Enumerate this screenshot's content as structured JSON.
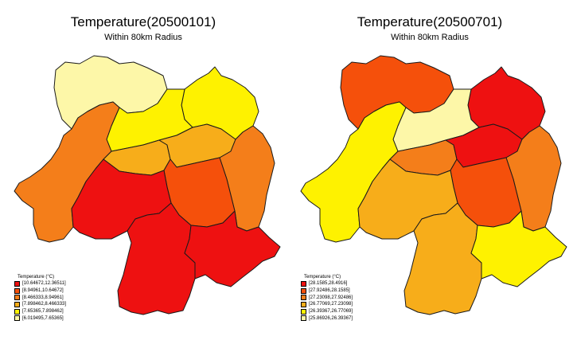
{
  "panels": [
    {
      "title": "Temperature(20500101)",
      "subtitle": "Within 80km Radius",
      "legend_title": "Temperature (°C)",
      "legend": [
        {
          "label": "[10.64672,12.36511]",
          "color": "#ee1111"
        },
        {
          "label": "[8.94961,10.64672]",
          "color": "#f5500b"
        },
        {
          "label": "[8.466333,8.94961]",
          "color": "#f47e1a"
        },
        {
          "label": "[7.898462,8.466333]",
          "color": "#f7ad1a"
        },
        {
          "label": "[7.65365,7.898462]",
          "color": "#fef200"
        },
        {
          "label": "[6.019495,7.65365]",
          "color": "#fdf7a8"
        }
      ],
      "regions": {
        "ne": 4,
        "nw": 5,
        "center": 4,
        "west": 2,
        "mid": 3,
        "east_mid": 3,
        "east": 2,
        "central": 1,
        "south_c": 0,
        "south_w": 0,
        "south_e": 0
      }
    },
    {
      "title": "Temperature(20500701)",
      "subtitle": "Within 80km Radius",
      "legend_title": "Temperature (°C)",
      "legend": [
        {
          "label": "[28.1585,28.4916]",
          "color": "#ee1111"
        },
        {
          "label": "[27.92486,28.1585]",
          "color": "#f5500b"
        },
        {
          "label": "[27.23098,27.92486]",
          "color": "#f47e1a"
        },
        {
          "label": "[26.77069,27.23098]",
          "color": "#f7ad1a"
        },
        {
          "label": "[26.39367,26.77069]",
          "color": "#fef200"
        },
        {
          "label": "[25.86926,26.39367]",
          "color": "#fdf7a8"
        }
      ],
      "regions": {
        "ne": 0,
        "nw": 1,
        "center": 5,
        "west": 4,
        "mid": 2,
        "east_mid": 0,
        "east": 2,
        "central": 1,
        "south_c": 3,
        "south_w": 3,
        "south_e": 4
      }
    }
  ]
}
